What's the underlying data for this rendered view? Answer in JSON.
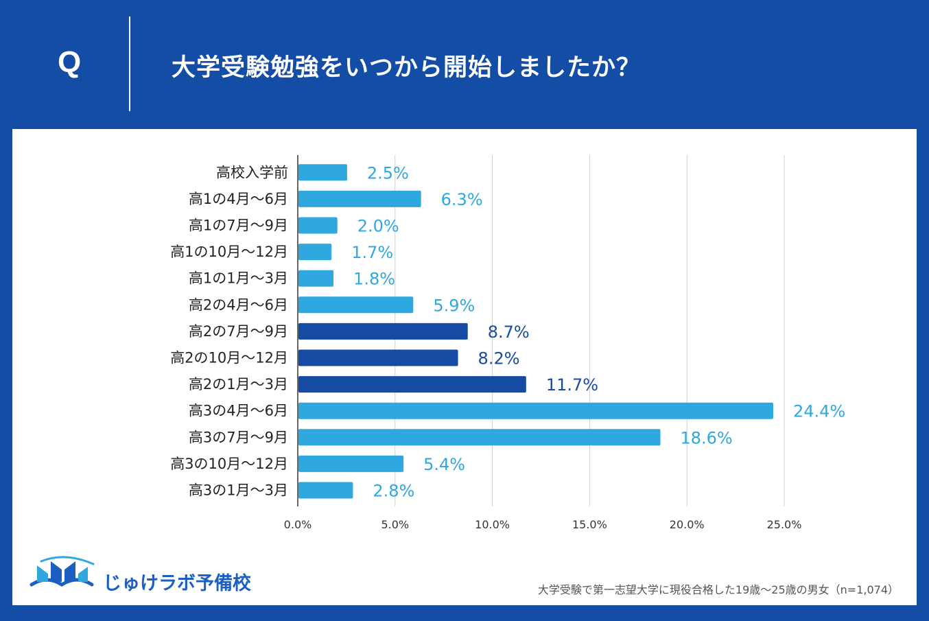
{
  "header": {
    "q_mark": "Q",
    "question": "大学受験勉強をいつから開始しましたか？"
  },
  "logo": {
    "text": "じゅけラボ予備校"
  },
  "footnote": "大学受験で第一志望大学に現役合格した19歳～25歳の男女（n=1,074）",
  "colors": {
    "background": "#144da6",
    "bar_light": "#2fa8e0",
    "bar_dark": "#164ba3",
    "panel": "#ffffff",
    "grid": "#d0d0d0"
  },
  "chart_data": {
    "type": "bar",
    "orientation": "horizontal",
    "title": "大学受験勉強をいつから開始しましたか？",
    "categories": [
      "高校入学前",
      "高1の4月～6月",
      "高1の7月～9月",
      "高1の10月～12月",
      "高1の1月～3月",
      "高2の4月～6月",
      "高2の7月～9月",
      "高2の10月～12月",
      "高2の1月～3月",
      "高3の4月～6月",
      "高3の7月～9月",
      "高3の10月～12月",
      "高3の1月～3月"
    ],
    "values": [
      2.5,
      6.3,
      2.0,
      1.7,
      1.8,
      5.9,
      8.7,
      8.2,
      11.7,
      24.4,
      18.6,
      5.4,
      2.8
    ],
    "value_labels": [
      "2.5%",
      "6.3%",
      "2.0%",
      "1.7%",
      "1.8%",
      "5.9%",
      "8.7%",
      "8.2%",
      "11.7%",
      "24.4%",
      "18.6%",
      "5.4%",
      "2.8%"
    ],
    "highlight": [
      false,
      false,
      false,
      false,
      false,
      false,
      true,
      true,
      true,
      false,
      false,
      false,
      false
    ],
    "xlim": [
      0,
      25
    ],
    "xticks": [
      "0.0%",
      "5.0%",
      "10.0%",
      "15.0%",
      "20.0%",
      "25.0%"
    ],
    "xlabel": "",
    "ylabel": "",
    "grid": true
  }
}
